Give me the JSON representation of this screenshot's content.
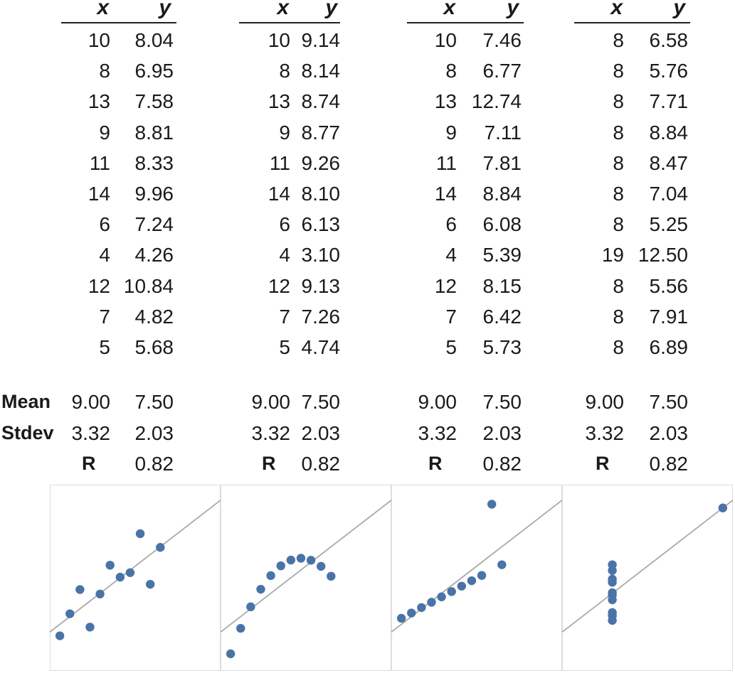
{
  "headers": {
    "x": "x",
    "y": "y"
  },
  "stat_labels": {
    "mean": "Mean",
    "stdev": "Stdev",
    "r": "R"
  },
  "datasets": [
    {
      "x": [
        "10",
        "8",
        "13",
        "9",
        "11",
        "14",
        "6",
        "4",
        "12",
        "7",
        "5"
      ],
      "y": [
        "8.04",
        "6.95",
        "7.58",
        "8.81",
        "8.33",
        "9.96",
        "7.24",
        "4.26",
        "10.84",
        "4.82",
        "5.68"
      ],
      "mean_x": "9.00",
      "mean_y": "7.50",
      "stdev_x": "3.32",
      "stdev_y": "2.03",
      "r": "0.82"
    },
    {
      "x": [
        "10",
        "8",
        "13",
        "9",
        "11",
        "14",
        "6",
        "4",
        "12",
        "7",
        "5"
      ],
      "y": [
        "9.14",
        "8.14",
        "8.74",
        "8.77",
        "9.26",
        "8.10",
        "6.13",
        "3.10",
        "9.13",
        "7.26",
        "4.74"
      ],
      "mean_x": "9.00",
      "mean_y": "7.50",
      "stdev_x": "3.32",
      "stdev_y": "2.03",
      "r": "0.82"
    },
    {
      "x": [
        "10",
        "8",
        "13",
        "9",
        "11",
        "14",
        "6",
        "4",
        "12",
        "7",
        "5"
      ],
      "y": [
        "7.46",
        "6.77",
        "12.74",
        "7.11",
        "7.81",
        "8.84",
        "6.08",
        "5.39",
        "8.15",
        "6.42",
        "5.73"
      ],
      "mean_x": "9.00",
      "mean_y": "7.50",
      "stdev_x": "3.32",
      "stdev_y": "2.03",
      "r": "0.82"
    },
    {
      "x": [
        "8",
        "8",
        "8",
        "8",
        "8",
        "8",
        "8",
        "19",
        "8",
        "8",
        "8"
      ],
      "y": [
        "6.58",
        "5.76",
        "7.71",
        "8.84",
        "8.47",
        "7.04",
        "5.25",
        "12.50",
        "5.56",
        "7.91",
        "6.89"
      ],
      "mean_x": "9.00",
      "mean_y": "7.50",
      "stdev_x": "3.32",
      "stdev_y": "2.03",
      "r": "0.82"
    }
  ],
  "chart_data": [
    {
      "type": "scatter",
      "x": [
        10,
        8,
        13,
        9,
        11,
        14,
        6,
        4,
        12,
        7,
        5
      ],
      "y": [
        8.04,
        6.95,
        7.58,
        8.81,
        8.33,
        9.96,
        7.24,
        4.26,
        10.84,
        4.82,
        5.68
      ],
      "fit_line": {
        "intercept": 3.0,
        "slope": 0.5
      },
      "xlim": [
        3,
        20
      ],
      "ylim": [
        2,
        14
      ],
      "grid": false,
      "point_color": "#4a73a8",
      "line_color": "#a9a9a9"
    },
    {
      "type": "scatter",
      "x": [
        10,
        8,
        13,
        9,
        11,
        14,
        6,
        4,
        12,
        7,
        5
      ],
      "y": [
        9.14,
        8.14,
        8.74,
        8.77,
        9.26,
        8.1,
        6.13,
        3.1,
        9.13,
        7.26,
        4.74
      ],
      "fit_line": {
        "intercept": 3.0,
        "slope": 0.5
      },
      "xlim": [
        3,
        20
      ],
      "ylim": [
        2,
        14
      ],
      "grid": false,
      "point_color": "#4a73a8",
      "line_color": "#a9a9a9"
    },
    {
      "type": "scatter",
      "x": [
        10,
        8,
        13,
        9,
        11,
        14,
        6,
        4,
        12,
        7,
        5
      ],
      "y": [
        7.46,
        6.77,
        12.74,
        7.11,
        7.81,
        8.84,
        6.08,
        5.39,
        8.15,
        6.42,
        5.73
      ],
      "fit_line": {
        "intercept": 3.0,
        "slope": 0.5
      },
      "xlim": [
        3,
        20
      ],
      "ylim": [
        2,
        14
      ],
      "grid": false,
      "point_color": "#4a73a8",
      "line_color": "#a9a9a9"
    },
    {
      "type": "scatter",
      "x": [
        8,
        8,
        8,
        8,
        8,
        8,
        8,
        19,
        8,
        8,
        8
      ],
      "y": [
        6.58,
        5.76,
        7.71,
        8.84,
        8.47,
        7.04,
        5.25,
        12.5,
        5.56,
        7.91,
        6.89
      ],
      "fit_line": {
        "intercept": 3.0,
        "slope": 0.5
      },
      "xlim": [
        3,
        20
      ],
      "ylim": [
        2,
        14
      ],
      "grid": false,
      "point_color": "#4a73a8",
      "line_color": "#a9a9a9"
    }
  ]
}
